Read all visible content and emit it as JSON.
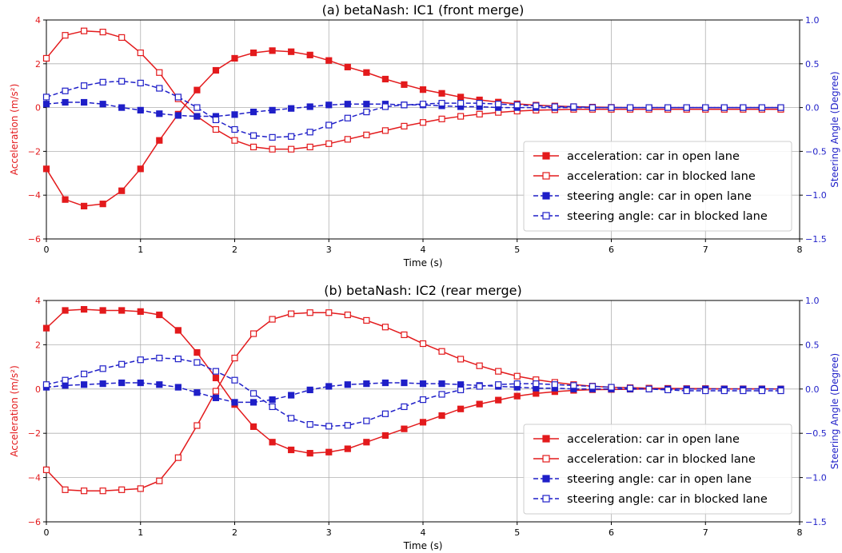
{
  "colors": {
    "acceleration": "#e31a1c",
    "steering": "#1f1fc8",
    "grid": "#b0b0b0",
    "legend_border": "#cccccc"
  },
  "chart_data": [
    {
      "type": "line",
      "title": "(a) betaNash: IC1 (front merge)",
      "xlabel": "Time (s)",
      "ylabel_left": "Acceleration (m/s²)",
      "ylabel_right": "Steering Angle (Degree)",
      "xlim": [
        0,
        8
      ],
      "ylim_left": [
        -6,
        4
      ],
      "ylim_right": [
        -1.5,
        1.0
      ],
      "x_ticks": [
        "0",
        "1",
        "2",
        "3",
        "4",
        "5",
        "6",
        "7",
        "8"
      ],
      "y_ticks_left": [
        "−6",
        "−4",
        "−2",
        "0",
        "2",
        "4"
      ],
      "y_ticks_right": [
        "−1.5",
        "−1.0",
        "−0.5",
        "0.0",
        "0.5",
        "1.0"
      ],
      "grid": true,
      "legend_position": "lower-right",
      "x": [
        0,
        0.2,
        0.4,
        0.6,
        0.8,
        1.0,
        1.2,
        1.4,
        1.6,
        1.8,
        2.0,
        2.2,
        2.4,
        2.6,
        2.8,
        3.0,
        3.2,
        3.4,
        3.6,
        3.8,
        4.0,
        4.2,
        4.4,
        4.6,
        4.8,
        5.0,
        5.2,
        5.4,
        5.6,
        5.8,
        6.0,
        6.2,
        6.4,
        6.6,
        6.8,
        7.0,
        7.2,
        7.4,
        7.6,
        7.8
      ],
      "series": [
        {
          "name": "acceleration: car in open lane",
          "axis": "left",
          "style": "solid",
          "marker": "filled",
          "color": "#e31a1c",
          "values": [
            -2.8,
            -4.2,
            -4.5,
            -4.4,
            -3.8,
            -2.8,
            -1.5,
            -0.3,
            0.8,
            1.7,
            2.25,
            2.5,
            2.6,
            2.55,
            2.4,
            2.15,
            1.85,
            1.6,
            1.3,
            1.05,
            0.82,
            0.65,
            0.48,
            0.35,
            0.25,
            0.17,
            0.11,
            0.07,
            0.04,
            0.02,
            0.01,
            0.0,
            0.0,
            0.0,
            0.0,
            0.0,
            0.0,
            0.0,
            0.0,
            0.0
          ]
        },
        {
          "name": "acceleration: car in blocked lane",
          "axis": "left",
          "style": "solid",
          "marker": "open",
          "color": "#e31a1c",
          "values": [
            2.25,
            3.3,
            3.5,
            3.45,
            3.2,
            2.5,
            1.6,
            0.4,
            -0.4,
            -1.0,
            -1.5,
            -1.8,
            -1.9,
            -1.9,
            -1.8,
            -1.65,
            -1.45,
            -1.25,
            -1.05,
            -0.85,
            -0.68,
            -0.52,
            -0.4,
            -0.3,
            -0.22,
            -0.16,
            -0.12,
            -0.1,
            -0.08,
            -0.08,
            -0.08,
            -0.08,
            -0.08,
            -0.08,
            -0.08,
            -0.08,
            -0.08,
            -0.08,
            -0.08,
            -0.08
          ]
        },
        {
          "name": "steering angle: car in open lane",
          "axis": "right",
          "style": "dashed",
          "marker": "filled",
          "color": "#1f1fc8",
          "values": [
            0.04,
            0.06,
            0.06,
            0.04,
            0.0,
            -0.03,
            -0.07,
            -0.09,
            -0.1,
            -0.1,
            -0.08,
            -0.05,
            -0.03,
            -0.01,
            0.01,
            0.03,
            0.04,
            0.04,
            0.04,
            0.03,
            0.03,
            0.02,
            0.01,
            0.01,
            0.0,
            0.0,
            0.0,
            0.0,
            0.0,
            0.0,
            0.0,
            0.0,
            0.0,
            0.0,
            0.0,
            0.0,
            0.0,
            0.0,
            0.0,
            0.0
          ]
        },
        {
          "name": "steering angle: car in blocked lane",
          "axis": "right",
          "style": "dashed",
          "marker": "open",
          "color": "#1f1fc8",
          "values": [
            0.12,
            0.19,
            0.25,
            0.29,
            0.3,
            0.28,
            0.22,
            0.12,
            0.0,
            -0.14,
            -0.25,
            -0.32,
            -0.34,
            -0.33,
            -0.28,
            -0.2,
            -0.12,
            -0.05,
            0.01,
            0.03,
            0.04,
            0.05,
            0.05,
            0.05,
            0.04,
            0.03,
            0.02,
            0.01,
            0.01,
            0.0,
            0.0,
            0.0,
            0.0,
            0.0,
            0.0,
            0.0,
            0.0,
            0.0,
            0.0,
            0.0
          ]
        }
      ]
    },
    {
      "type": "line",
      "title": "(b) betaNash: IC2 (rear merge)",
      "xlabel": "Time (s)",
      "ylabel_left": "Acceleration (m/s²)",
      "ylabel_right": "Steering Angle (Degree)",
      "xlim": [
        0,
        8
      ],
      "ylim_left": [
        -6,
        4
      ],
      "ylim_right": [
        -1.5,
        1.0
      ],
      "x_ticks": [
        "0",
        "1",
        "2",
        "3",
        "4",
        "5",
        "6",
        "7",
        "8"
      ],
      "y_ticks_left": [
        "−6",
        "−4",
        "−2",
        "0",
        "2",
        "4"
      ],
      "y_ticks_right": [
        "−1.5",
        "−1.0",
        "−0.5",
        "0.0",
        "0.5",
        "1.0"
      ],
      "grid": true,
      "legend_position": "lower-right",
      "x": [
        0,
        0.2,
        0.4,
        0.6,
        0.8,
        1.0,
        1.2,
        1.4,
        1.6,
        1.8,
        2.0,
        2.2,
        2.4,
        2.6,
        2.8,
        3.0,
        3.2,
        3.4,
        3.6,
        3.8,
        4.0,
        4.2,
        4.4,
        4.6,
        4.8,
        5.0,
        5.2,
        5.4,
        5.6,
        5.8,
        6.0,
        6.2,
        6.4,
        6.6,
        6.8,
        7.0,
        7.2,
        7.4,
        7.6,
        7.8
      ],
      "series": [
        {
          "name": "acceleration: car in open lane",
          "axis": "left",
          "style": "solid",
          "marker": "filled",
          "color": "#e31a1c",
          "values": [
            2.75,
            3.55,
            3.6,
            3.55,
            3.55,
            3.5,
            3.35,
            2.65,
            1.65,
            0.5,
            -0.7,
            -1.7,
            -2.4,
            -2.75,
            -2.9,
            -2.85,
            -2.7,
            -2.4,
            -2.1,
            -1.8,
            -1.5,
            -1.2,
            -0.9,
            -0.68,
            -0.5,
            -0.32,
            -0.2,
            -0.12,
            -0.06,
            -0.03,
            -0.02,
            -0.01,
            0.0,
            0.0,
            0.0,
            0.0,
            0.0,
            0.0,
            0.0,
            0.0
          ]
        },
        {
          "name": "acceleration: car in blocked lane",
          "axis": "left",
          "style": "solid",
          "marker": "open",
          "color": "#e31a1c",
          "values": [
            -3.65,
            -4.55,
            -4.6,
            -4.6,
            -4.55,
            -4.5,
            -4.15,
            -3.1,
            -1.65,
            -0.1,
            1.4,
            2.5,
            3.15,
            3.4,
            3.45,
            3.45,
            3.35,
            3.1,
            2.8,
            2.45,
            2.05,
            1.7,
            1.35,
            1.05,
            0.8,
            0.58,
            0.42,
            0.3,
            0.2,
            0.13,
            0.08,
            0.06,
            0.04,
            0.03,
            0.02,
            0.02,
            0.01,
            0.01,
            0.01,
            0.0
          ]
        },
        {
          "name": "steering angle: car in open lane",
          "axis": "right",
          "style": "dashed",
          "marker": "filled",
          "color": "#1f1fc8",
          "values": [
            0.02,
            0.04,
            0.05,
            0.06,
            0.07,
            0.07,
            0.05,
            0.02,
            -0.04,
            -0.1,
            -0.15,
            -0.15,
            -0.12,
            -0.07,
            -0.01,
            0.03,
            0.05,
            0.06,
            0.07,
            0.07,
            0.06,
            0.06,
            0.05,
            0.04,
            0.03,
            0.02,
            0.01,
            0.01,
            0.0,
            0.0,
            0.0,
            0.0,
            0.0,
            0.0,
            0.0,
            0.0,
            0.0,
            0.0,
            0.0,
            0.0
          ]
        },
        {
          "name": "steering angle: car in blocked lane",
          "axis": "right",
          "style": "dashed",
          "marker": "open",
          "color": "#1f1fc8",
          "values": [
            0.05,
            0.1,
            0.17,
            0.23,
            0.28,
            0.33,
            0.35,
            0.34,
            0.3,
            0.2,
            0.1,
            -0.05,
            -0.2,
            -0.33,
            -0.4,
            -0.42,
            -0.41,
            -0.36,
            -0.28,
            -0.2,
            -0.12,
            -0.06,
            -0.01,
            0.03,
            0.05,
            0.06,
            0.06,
            0.05,
            0.04,
            0.03,
            0.02,
            0.01,
            0.0,
            -0.01,
            -0.02,
            -0.02,
            -0.02,
            -0.02,
            -0.02,
            -0.02
          ]
        }
      ]
    }
  ]
}
